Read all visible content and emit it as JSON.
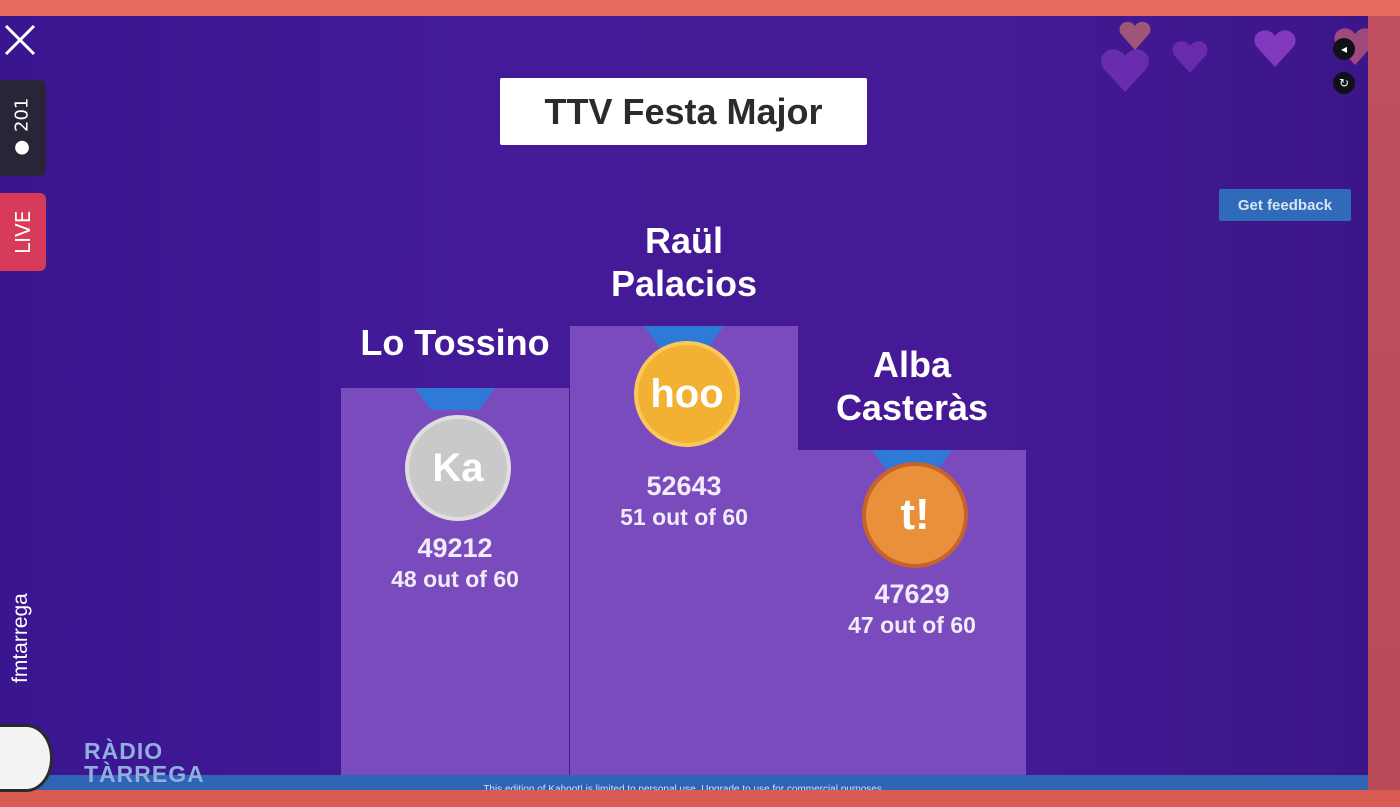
{
  "quiz": {
    "title": "TTV Festa Major"
  },
  "actions": {
    "feedback_label": "Get feedback"
  },
  "podium": [
    {
      "rank": 2,
      "name_line1": "Lo Tossino",
      "name_line2": "",
      "score": "49212",
      "correct": "48 out of 60",
      "medal_text": "Ka",
      "medal_color": "#c9c9c9"
    },
    {
      "rank": 1,
      "name_line1": "Raül",
      "name_line2": "Palacios",
      "score": "52643",
      "correct": "51 out of 60",
      "medal_text": "hoo",
      "medal_color": "#f2b132"
    },
    {
      "rank": 3,
      "name_line1": "Alba",
      "name_line2": "Casteràs",
      "score": "47629",
      "correct": "47 out of 60",
      "medal_text": "t!",
      "medal_color": "#e8913a"
    }
  ],
  "footer": {
    "notice": "This edition of Kahoot! is limited to personal use.  Upgrade to use for commercial purposes."
  },
  "stream": {
    "viewers": "201",
    "live_label": "LIVE",
    "username": "fmtarrega"
  },
  "branding": {
    "logo_line1": "RÀDIO",
    "logo_line2": "TÀRREGA"
  },
  "colors": {
    "background": "#441a98",
    "podium": "#7a4bbd",
    "ribbon": "#2f7ad6",
    "footer": "#2f64b4",
    "live": "#d83a5a"
  }
}
